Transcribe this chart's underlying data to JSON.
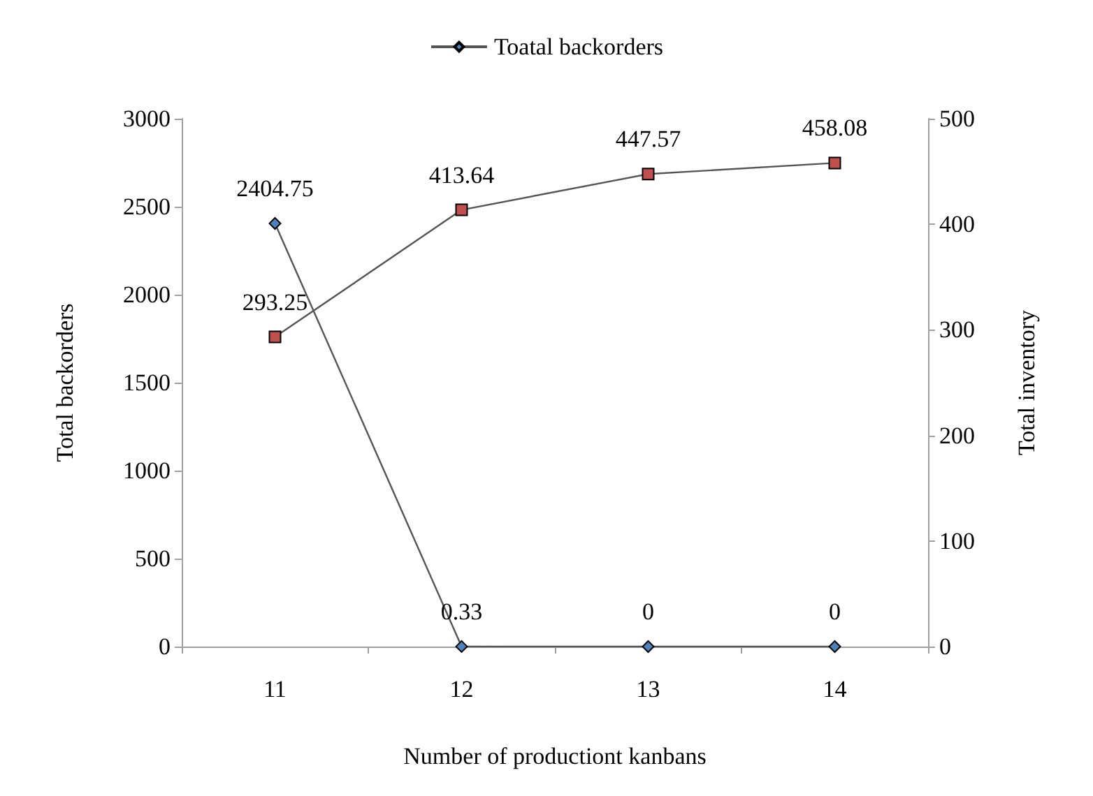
{
  "chart_data": {
    "type": "line",
    "xlabel": "Number of productiont kanbans",
    "ylabel": "Total backorders",
    "y2label": "Total inventory",
    "categories": [
      "11",
      "12",
      "13",
      "14"
    ],
    "series": [
      {
        "name": "Toatal backorders",
        "color": "#4f81bd",
        "values": [
          2404.75,
          0.33,
          0,
          0
        ],
        "marker": "diamond"
      },
      {
        "color": "#c0504d",
        "values": [
          293.25,
          413.64,
          447.57,
          458.08
        ],
        "axis": "y2",
        "marker": "square"
      }
    ],
    "ylim": [
      0,
      3000
    ],
    "yticks": [
      0,
      500,
      1000,
      1500,
      2000,
      2500,
      3000
    ],
    "y2lim": [
      0,
      500
    ],
    "y2ticks": [
      0,
      100,
      200,
      300,
      400,
      500
    ],
    "data_labels": true,
    "grid": false,
    "legend": "top",
    "line_style": "solid"
  }
}
